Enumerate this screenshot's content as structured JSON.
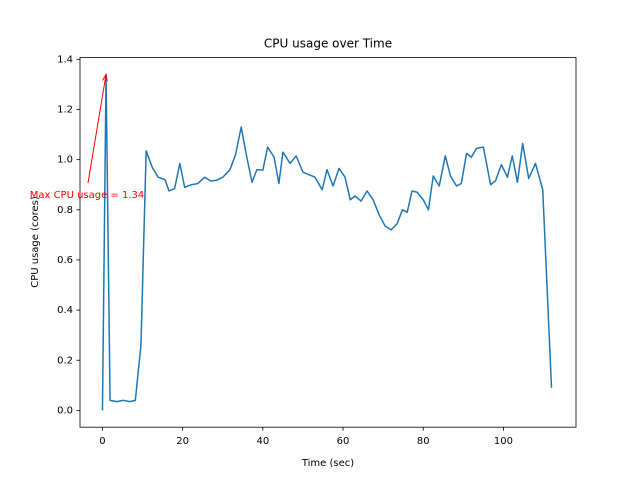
{
  "chart_data": {
    "type": "line",
    "title": "CPU usage over Time",
    "x_label": "Time (sec)",
    "y_label": "CPU usage (cores)",
    "annotation": "Max CPU usage = 1.34",
    "annotation_color": "#ff0000",
    "color": "#1f77b4",
    "x": [
      0,
      0.9,
      1.9,
      3.5,
      5.2,
      6.8,
      8.2,
      9.6,
      10.9,
      12.4,
      13.9,
      15.6,
      16.6,
      18,
      19.3,
      20.5,
      22.2,
      23.8,
      25.5,
      27,
      28.5,
      30,
      31.8,
      33.2,
      34.6,
      36,
      37.3,
      38.5,
      40,
      41.2,
      42.8,
      44,
      45,
      46.8,
      48.3,
      50,
      51.5,
      53,
      54.8,
      56,
      57.5,
      59,
      60.5,
      61.8,
      63,
      64.5,
      66,
      67.5,
      69,
      70.5,
      72,
      73.5,
      74.8,
      76,
      77.2,
      78.5,
      80,
      81.3,
      82.5,
      84,
      85.5,
      86.8,
      88.3,
      89.5,
      90.8,
      92,
      93.3,
      95,
      96.8,
      98,
      99.5,
      101,
      102.2,
      103.5,
      104.8,
      106.3,
      108,
      109.8,
      112
    ],
    "values": [
      0,
      1.34,
      0.04,
      0.035,
      0.04,
      0.035,
      0.04,
      0.26,
      1.035,
      0.97,
      0.93,
      0.92,
      0.875,
      0.885,
      0.985,
      0.89,
      0.9,
      0.905,
      0.93,
      0.915,
      0.918,
      0.93,
      0.96,
      1.02,
      1.13,
      1.01,
      0.91,
      0.96,
      0.958,
      1.05,
      1.01,
      0.905,
      1.03,
      0.985,
      1.015,
      0.95,
      0.94,
      0.93,
      0.88,
      0.96,
      0.895,
      0.965,
      0.93,
      0.84,
      0.855,
      0.835,
      0.875,
      0.84,
      0.78,
      0.735,
      0.72,
      0.745,
      0.8,
      0.79,
      0.875,
      0.87,
      0.84,
      0.8,
      0.935,
      0.895,
      1.015,
      0.935,
      0.895,
      0.905,
      1.025,
      1.01,
      1.045,
      1.05,
      0.9,
      0.915,
      0.98,
      0.93,
      1.015,
      0.91,
      1.065,
      0.925,
      0.985,
      0.88,
      0.09
    ],
    "xlim": [
      -5.6,
      118.1
    ],
    "xticks": [
      0,
      20,
      40,
      60,
      80,
      100
    ],
    "ylim": [
      -0.067,
      1.407
    ],
    "yticks": [
      {
        "value": 0,
        "label": "0.0"
      },
      0.2,
      0.4,
      0.6,
      0.8,
      {
        "value": 1,
        "label": "1.0"
      },
      1.2,
      1.4
    ]
  }
}
